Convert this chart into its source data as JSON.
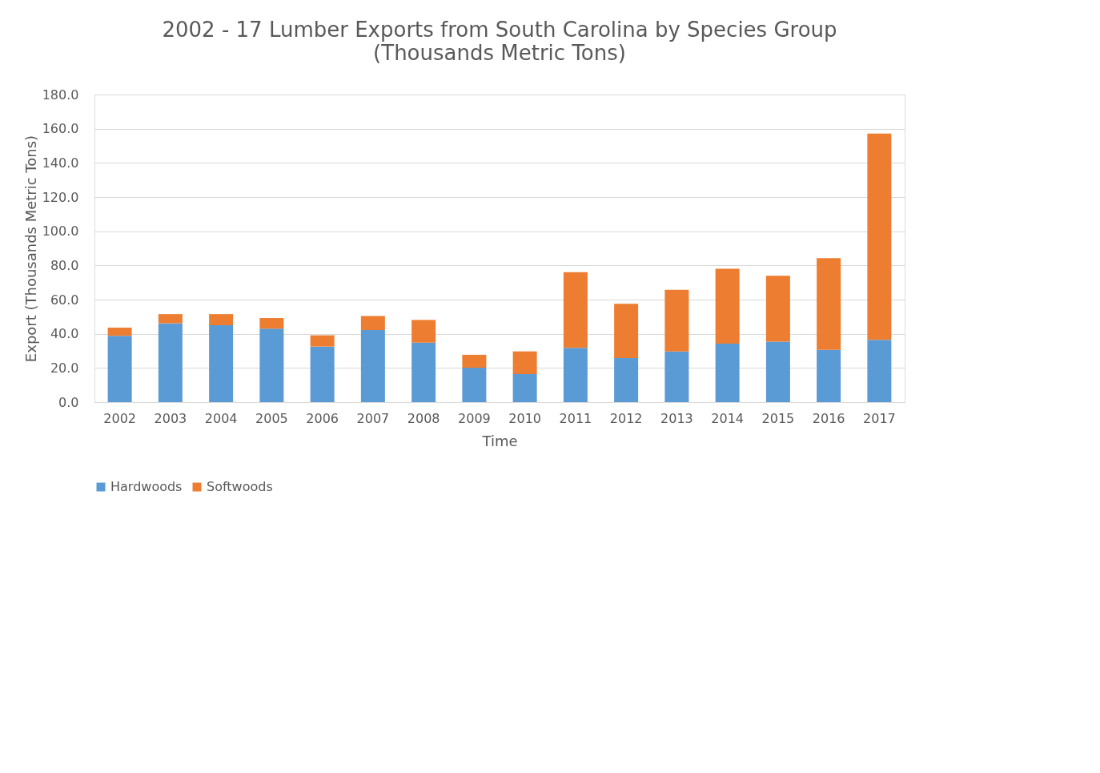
{
  "chart_data": {
    "type": "bar",
    "title": "2002 - 17 Lumber Exports from South Carolina by Species Group",
    "subtitle": "(Thousands Metric Tons)",
    "xlabel": "Time",
    "ylabel": "Export (Thousands Metric Tons)",
    "categories": [
      "2002",
      "2003",
      "2004",
      "2005",
      "2006",
      "2007",
      "2008",
      "2009",
      "2010",
      "2011",
      "2012",
      "2013",
      "2014",
      "2015",
      "2016",
      "2017"
    ],
    "stacked": true,
    "series": [
      {
        "name": "Hardwoods",
        "color": "#5b9bd5",
        "values": [
          38.8,
          46.1,
          45.0,
          43.0,
          32.5,
          42.2,
          34.8,
          20.1,
          16.4,
          31.7,
          25.8,
          29.7,
          34.2,
          35.4,
          30.6,
          36.5
        ]
      },
      {
        "name": "Softwoods",
        "color": "#ed7d31",
        "values": [
          4.8,
          5.4,
          6.5,
          6.2,
          6.6,
          8.2,
          13.3,
          7.6,
          13.3,
          44.4,
          31.7,
          36.0,
          43.9,
          38.5,
          53.7,
          120.6
        ]
      }
    ],
    "ylim": [
      0,
      180
    ],
    "yticks": [
      {
        "value": 0,
        "label": "0.0"
      },
      {
        "value": 20,
        "label": "20.0"
      },
      {
        "value": 40,
        "label": "40.0"
      },
      {
        "value": 60,
        "label": "60.0"
      },
      {
        "value": 80,
        "label": "80.0"
      },
      {
        "value": 100,
        "label": "100.0"
      },
      {
        "value": 120,
        "label": "120.0"
      },
      {
        "value": 140,
        "label": "140.0"
      },
      {
        "value": 160,
        "label": "160.0"
      },
      {
        "value": 180,
        "label": "180.0"
      }
    ],
    "grid": "y",
    "legend": "bottom"
  }
}
